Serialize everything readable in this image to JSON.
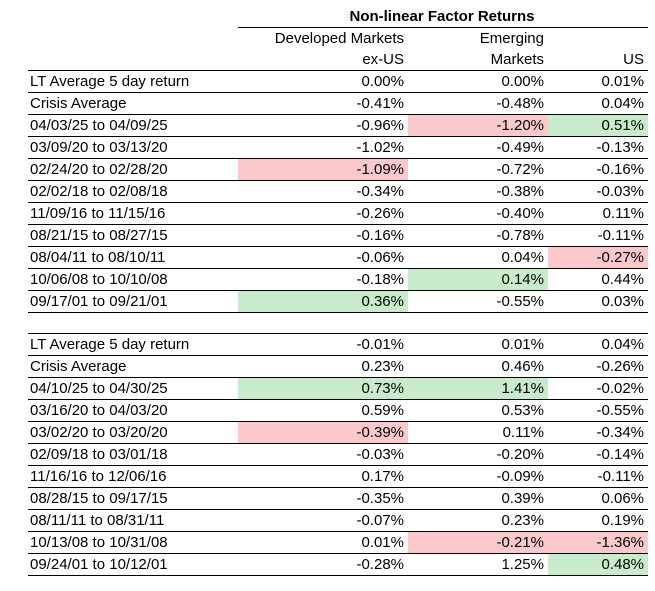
{
  "title": "Non-linear Factor Returns",
  "columns": [
    {
      "line1": "Developed Markets",
      "line2": "ex-US"
    },
    {
      "line1": "Emerging",
      "line2": "Markets"
    },
    {
      "line1": "",
      "line2": "US"
    }
  ],
  "colors": {
    "negative_highlight": "#fbc9cc",
    "positive_highlight": "#c8eccb"
  },
  "sections": [
    {
      "rows": [
        {
          "label": "LT Average 5 day return",
          "values": [
            "0.00%",
            "0.00%",
            "0.01%"
          ],
          "highlights": [
            "",
            "",
            ""
          ]
        },
        {
          "label": "Crisis Average",
          "values": [
            "-0.41%",
            "-0.48%",
            "0.04%"
          ],
          "highlights": [
            "",
            "",
            ""
          ]
        },
        {
          "label": "04/03/25 to 04/09/25",
          "values": [
            "-0.96%",
            "-1.20%",
            "0.51%"
          ],
          "highlights": [
            "",
            "red",
            "green"
          ]
        },
        {
          "label": "03/09/20 to 03/13/20",
          "values": [
            "-1.02%",
            "-0.49%",
            "-0.13%"
          ],
          "highlights": [
            "",
            "",
            ""
          ]
        },
        {
          "label": "02/24/20 to 02/28/20",
          "values": [
            "-1.09%",
            "-0.72%",
            "-0.16%"
          ],
          "highlights": [
            "red",
            "",
            ""
          ]
        },
        {
          "label": "02/02/18 to 02/08/18",
          "values": [
            "-0.34%",
            "-0.38%",
            "-0.03%"
          ],
          "highlights": [
            "",
            "",
            ""
          ]
        },
        {
          "label": "11/09/16 to 11/15/16",
          "values": [
            "-0.26%",
            "-0.40%",
            "0.11%"
          ],
          "highlights": [
            "",
            "",
            ""
          ]
        },
        {
          "label": "08/21/15 to 08/27/15",
          "values": [
            "-0.16%",
            "-0.78%",
            "-0.11%"
          ],
          "highlights": [
            "",
            "",
            ""
          ]
        },
        {
          "label": "08/04/11 to 08/10/11",
          "values": [
            "-0.06%",
            "0.04%",
            "-0.27%"
          ],
          "highlights": [
            "",
            "",
            "red"
          ]
        },
        {
          "label": "10/06/08 to 10/10/08",
          "values": [
            "-0.18%",
            "0.14%",
            "0.44%"
          ],
          "highlights": [
            "",
            "green",
            ""
          ]
        },
        {
          "label": "09/17/01 to 09/21/01",
          "values": [
            "0.36%",
            "-0.55%",
            "0.03%"
          ],
          "highlights": [
            "green",
            "",
            ""
          ]
        }
      ]
    },
    {
      "rows": [
        {
          "label": "LT Average 5 day return",
          "values": [
            "-0.01%",
            "0.01%",
            "0.04%"
          ],
          "highlights": [
            "",
            "",
            ""
          ]
        },
        {
          "label": "Crisis Average",
          "values": [
            "0.23%",
            "0.46%",
            "-0.26%"
          ],
          "highlights": [
            "",
            "",
            ""
          ]
        },
        {
          "label": "04/10/25 to 04/30/25",
          "values": [
            "0.73%",
            "1.41%",
            "-0.02%"
          ],
          "highlights": [
            "green",
            "green",
            ""
          ]
        },
        {
          "label": "03/16/20 to 04/03/20",
          "values": [
            "0.59%",
            "0.53%",
            "-0.55%"
          ],
          "highlights": [
            "",
            "",
            ""
          ]
        },
        {
          "label": "03/02/20 to 03/20/20",
          "values": [
            "-0.39%",
            "0.11%",
            "-0.34%"
          ],
          "highlights": [
            "red",
            "",
            ""
          ]
        },
        {
          "label": "02/09/18 to 03/01/18",
          "values": [
            "-0.03%",
            "-0.20%",
            "-0.14%"
          ],
          "highlights": [
            "",
            "",
            ""
          ]
        },
        {
          "label": "11/16/16 to 12/06/16",
          "values": [
            "0.17%",
            "-0.09%",
            "-0.11%"
          ],
          "highlights": [
            "",
            "",
            ""
          ]
        },
        {
          "label": "08/28/15 to 09/17/15",
          "values": [
            "-0.35%",
            "0.39%",
            "0.06%"
          ],
          "highlights": [
            "",
            "",
            ""
          ]
        },
        {
          "label": "08/11/11 to 08/31/11",
          "values": [
            "-0.07%",
            "0.23%",
            "0.19%"
          ],
          "highlights": [
            "",
            "",
            ""
          ]
        },
        {
          "label": "10/13/08 to 10/31/08",
          "values": [
            "0.01%",
            "-0.21%",
            "-1.36%"
          ],
          "highlights": [
            "",
            "red",
            "red"
          ]
        },
        {
          "label": "09/24/01 to 10/12/01",
          "values": [
            "-0.28%",
            "1.25%",
            "0.48%"
          ],
          "highlights": [
            "",
            "",
            "green"
          ]
        }
      ]
    }
  ]
}
